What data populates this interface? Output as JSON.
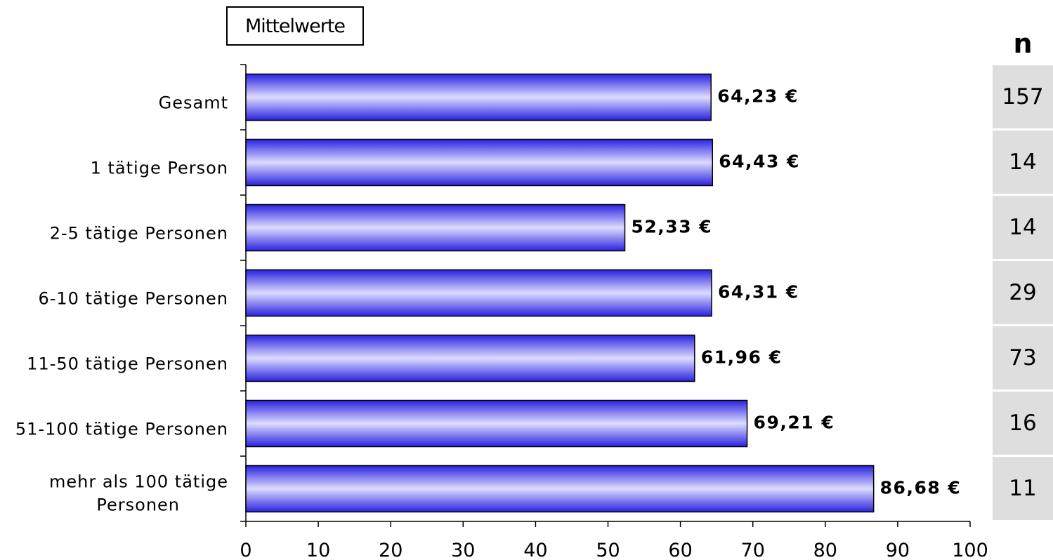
{
  "legend_label": "Mittelwerte",
  "n_header": "n",
  "colors": {
    "bar_dark": "#2a22e0",
    "bar_light": "#dcdcff",
    "n_cell_bg": "#dedede"
  },
  "chart_data": {
    "type": "bar",
    "orientation": "horizontal",
    "categories": [
      "Gesamt",
      "1 tätige Person",
      "2-5 tätige Personen",
      "6-10 tätige Personen",
      "11-50 tätige Personen",
      "51-100 tätige Personen",
      "mehr als 100 tätige Personen"
    ],
    "values": [
      64.23,
      64.43,
      52.33,
      64.31,
      61.96,
      69.21,
      86.68
    ],
    "value_labels": [
      "64,23 €",
      "64,43 €",
      "52,33 €",
      "64,31 €",
      "61,96 €",
      "69,21 €",
      "86,68 €"
    ],
    "n": [
      "157",
      "14",
      "14",
      "29",
      "73",
      "16",
      "11"
    ],
    "xlim": [
      0,
      100
    ],
    "xticks": [
      "0",
      "10",
      "20",
      "30",
      "40",
      "50",
      "60",
      "70",
      "80",
      "90",
      "100"
    ],
    "grid": false,
    "legend": "top-left"
  }
}
